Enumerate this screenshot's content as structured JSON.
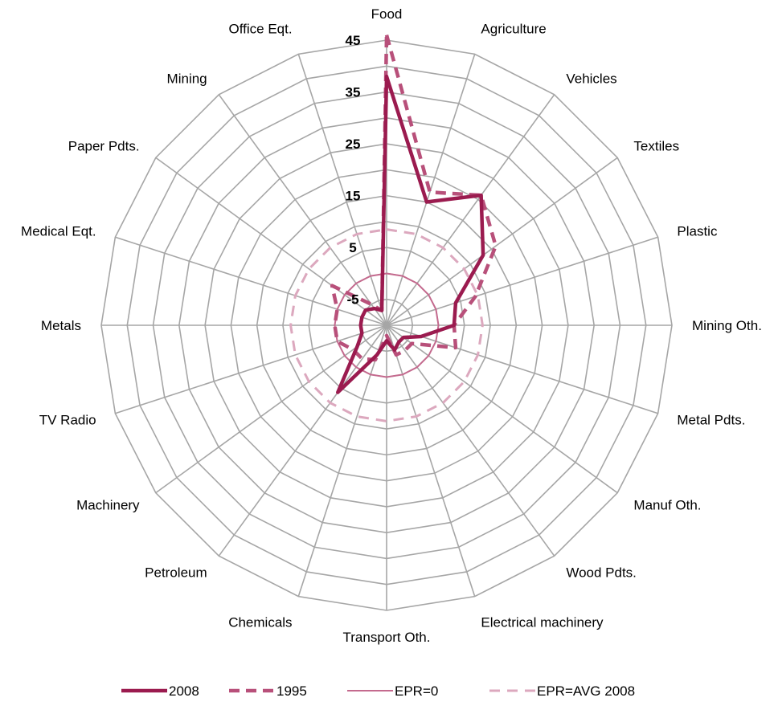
{
  "chart_data": {
    "type": "radar",
    "title": "",
    "categories": [
      "Food",
      "Agriculture",
      "Vehicles",
      "Textiles",
      "Plastic",
      "Mining Oth.",
      "Metal Pdts.",
      "Manuf Oth.",
      "Wood Pdts.",
      "Electrical machinery",
      "Transport Oth.",
      "Chemicals",
      "Petroleum",
      "Machinery",
      "TV Radio",
      "Metals",
      "Medical Eqt.",
      "Paper Pdts.",
      "Mining",
      "Office Eqt."
    ],
    "rlim": [
      -10,
      45
    ],
    "ticks": [
      -5,
      5,
      15,
      25,
      35,
      45
    ],
    "tick_labels": [
      "-5",
      "5",
      "15",
      "25",
      "35",
      "45"
    ],
    "grid": true,
    "legend_position": "bottom",
    "series": [
      {
        "name": "2008",
        "style": "solid-thick",
        "color": "#9b1b4f",
        "values": [
          38,
          15,
          21,
          13,
          4,
          3,
          -3,
          -6,
          -6,
          -5,
          -7,
          -4,
          6,
          -3,
          -5,
          -5,
          -5,
          -5,
          -6,
          -7
        ]
      },
      {
        "name": "1995",
        "style": "dashed-thick",
        "color": "#b8507a",
        "values": [
          46,
          17,
          21,
          16,
          8,
          3,
          4,
          -4,
          -4,
          -4,
          -8,
          -3,
          -2,
          -2,
          0,
          0,
          0,
          3,
          -5,
          -7
        ]
      },
      {
        "name": "EPR=0",
        "style": "solid-thin",
        "color": "#c46a8e",
        "values": [
          0,
          0,
          0,
          0,
          0,
          0,
          0,
          0,
          0,
          0,
          0,
          0,
          0,
          0,
          0,
          0,
          0,
          0,
          0,
          0
        ]
      },
      {
        "name": "EPR=AVG 2008",
        "style": "dashed-thin",
        "color": "#dca8be",
        "values": [
          8.5,
          8.5,
          8.5,
          8.5,
          8.5,
          8.5,
          8.5,
          8.5,
          8.5,
          8.5,
          8.5,
          8.5,
          8.5,
          8.5,
          8.5,
          8.5,
          8.5,
          8.5,
          8.5,
          8.5
        ]
      }
    ]
  }
}
